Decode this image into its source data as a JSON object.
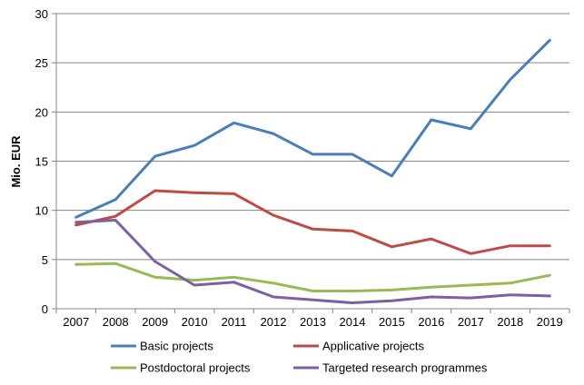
{
  "chart_data": {
    "type": "line",
    "title": "",
    "xlabel": "",
    "ylabel": "Mio. EUR",
    "categories": [
      "2007",
      "2008",
      "2009",
      "2010",
      "2011",
      "2012",
      "2013",
      "2014",
      "2015",
      "2016",
      "2017",
      "2018",
      "2019"
    ],
    "ylim": [
      0,
      30
    ],
    "yticks": [
      0,
      5,
      10,
      15,
      20,
      25,
      30
    ],
    "grid": true,
    "legend_position": "bottom",
    "series": [
      {
        "name": "Basic projects",
        "color": "#4a7ebb",
        "values": [
          9.3,
          11.1,
          15.5,
          16.6,
          18.9,
          17.8,
          15.7,
          15.7,
          13.5,
          19.2,
          18.3,
          23.3,
          27.3
        ]
      },
      {
        "name": "Applicative projects",
        "color": "#be4b48",
        "values": [
          8.5,
          9.4,
          12.0,
          11.8,
          11.7,
          9.5,
          8.1,
          7.9,
          6.3,
          7.1,
          5.6,
          6.4,
          6.4
        ]
      },
      {
        "name": "Postdoctoral projects",
        "color": "#98b954",
        "values": [
          4.5,
          4.6,
          3.2,
          2.9,
          3.2,
          2.6,
          1.8,
          1.8,
          1.9,
          2.2,
          2.4,
          2.6,
          3.4
        ]
      },
      {
        "name": "Targeted research programmes",
        "color": "#7d60a0",
        "values": [
          8.8,
          9.0,
          4.8,
          2.4,
          2.7,
          1.2,
          0.9,
          0.6,
          0.8,
          1.2,
          1.1,
          1.4,
          1.3
        ]
      }
    ]
  }
}
